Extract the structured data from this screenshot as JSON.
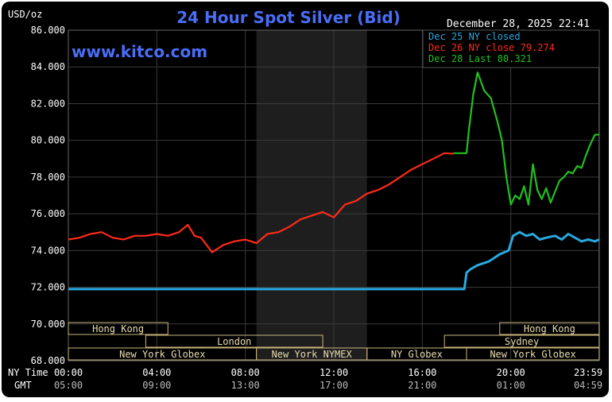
{
  "header": {
    "unit": "USD/oz",
    "title": "24 Hour Spot Silver (Bid)",
    "datetime": "December 28, 2025 22:41",
    "watermark": "www.kitco.com"
  },
  "legend": [
    {
      "label": "Dec 25 NY closed",
      "color": "#29a8e0"
    },
    {
      "label": "Dec 26 NY close 79.274",
      "color": "#ff2a1a"
    },
    {
      "label": "Dec 28 Last 80.321",
      "color": "#22c01e"
    }
  ],
  "axis_labels": {
    "ny_time": "NY Time",
    "gmt": "GMT"
  },
  "sessions": [
    {
      "label": "Hong Kong",
      "start": 0.0,
      "end": 4.5
    },
    {
      "label": "London",
      "start": 3.5,
      "end": 11.5
    },
    {
      "label": "New York Globex",
      "start": 0.0,
      "end": 8.5
    },
    {
      "label": "New York NYMEX",
      "start": 8.5,
      "end": 13.5
    },
    {
      "label": "NY Globex",
      "start": 13.5,
      "end": 18.0
    },
    {
      "label": "Sydney",
      "start": 17.0,
      "end": 24.0
    },
    {
      "label": "Hong Kong",
      "start": 19.5,
      "end": 24.0
    },
    {
      "label": "New York Globex",
      "start": 18.0,
      "end": 24.0
    }
  ],
  "chart_data": {
    "type": "line",
    "title": "24 Hour Spot Silver (Bid)",
    "ylabel": "USD/oz",
    "ylim": [
      68,
      86
    ],
    "xlim": [
      0,
      24
    ],
    "y_ticks": [
      "68.000",
      "70.000",
      "72.000",
      "74.000",
      "76.000",
      "78.000",
      "80.000",
      "82.000",
      "84.000",
      "86.000"
    ],
    "y_tick_values": [
      68,
      70,
      72,
      74,
      76,
      78,
      80,
      82,
      84,
      86
    ],
    "x_tick_values": [
      0,
      4,
      8,
      12,
      16,
      20,
      23.983
    ],
    "x_ticks_ny": [
      "00:00",
      "04:00",
      "08:00",
      "12:00",
      "16:00",
      "20:00",
      "23:59"
    ],
    "x_ticks_gmt": [
      "05:00",
      "09:00",
      "13:00",
      "17:00",
      "21:00",
      "01:00",
      "04:59"
    ],
    "shaded_region": [
      8.5,
      13.5
    ],
    "grid": true,
    "legend_position": "top-right",
    "series": [
      {
        "name": "Dec 25 NY closed",
        "color": "#29a8e0",
        "x": [
          0,
          2,
          4,
          6,
          8,
          10,
          12,
          14,
          16,
          17.9,
          18.0,
          18.2,
          18.5,
          19.0,
          19.5,
          19.9,
          20.1,
          20.4,
          20.7,
          21.0,
          21.3,
          21.6,
          22.0,
          22.3,
          22.6,
          22.9,
          23.2,
          23.5,
          23.8,
          24.0
        ],
        "y": [
          71.9,
          71.9,
          71.9,
          71.9,
          71.9,
          71.9,
          71.9,
          71.9,
          71.9,
          71.9,
          72.8,
          73.0,
          73.2,
          73.4,
          73.8,
          74.0,
          74.8,
          75.0,
          74.8,
          74.9,
          74.6,
          74.7,
          74.8,
          74.6,
          74.9,
          74.7,
          74.5,
          74.6,
          74.5,
          74.6
        ]
      },
      {
        "name": "Dec 26 NY close 79.274",
        "color": "#ff2a1a",
        "x": [
          0,
          0.5,
          1.0,
          1.5,
          2.0,
          2.5,
          3.0,
          3.5,
          4.0,
          4.5,
          5.0,
          5.4,
          5.7,
          6.0,
          6.5,
          7.0,
          7.5,
          8.0,
          8.5,
          9.0,
          9.5,
          10.0,
          10.5,
          11.0,
          11.5,
          12.0,
          12.5,
          13.0,
          13.5,
          14.0,
          14.5,
          15.0,
          15.5,
          16.0,
          16.5,
          17.0,
          17.4
        ],
        "y": [
          74.6,
          74.7,
          74.9,
          75.0,
          74.7,
          74.6,
          74.8,
          74.8,
          74.9,
          74.8,
          75.0,
          75.4,
          74.8,
          74.7,
          73.9,
          74.3,
          74.5,
          74.6,
          74.4,
          74.9,
          75.0,
          75.3,
          75.7,
          75.9,
          76.1,
          75.8,
          76.5,
          76.7,
          77.1,
          77.3,
          77.6,
          78.0,
          78.4,
          78.7,
          79.0,
          79.3,
          79.27
        ]
      },
      {
        "name": "Dec 28 Last 80.321",
        "color": "#22c01e",
        "x": [
          17.4,
          18.0,
          18.1,
          18.3,
          18.5,
          18.8,
          19.1,
          19.4,
          19.6,
          19.8,
          20.0,
          20.2,
          20.4,
          20.6,
          20.8,
          21.0,
          21.2,
          21.4,
          21.6,
          21.8,
          22.0,
          22.2,
          22.4,
          22.6,
          22.8,
          23.0,
          23.2,
          23.4,
          23.6,
          23.8,
          24.0
        ],
        "y": [
          79.3,
          79.3,
          80.5,
          82.5,
          83.7,
          82.7,
          82.3,
          81.0,
          80.0,
          78.0,
          76.5,
          77.0,
          76.8,
          77.5,
          76.5,
          78.7,
          77.3,
          76.8,
          77.4,
          76.6,
          77.2,
          77.8,
          78.0,
          78.3,
          78.2,
          78.6,
          78.5,
          79.2,
          79.8,
          80.3,
          80.32
        ]
      }
    ]
  }
}
